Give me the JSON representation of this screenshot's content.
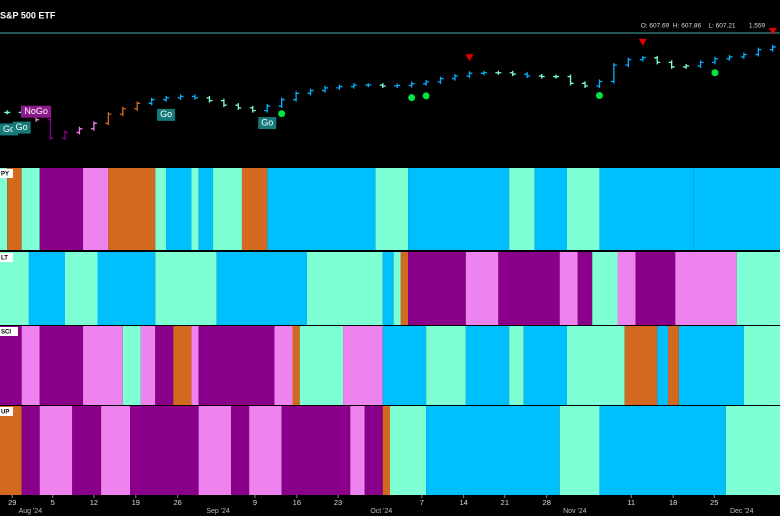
{
  "chart_data": {
    "type": "ohlc",
    "title": "S&P 500 ETF",
    "legend": [
      "O: 607.69",
      "H: 607.86",
      "L: 607.21",
      "1.559"
    ],
    "ylim": [
      540,
      612
    ],
    "xlim": [
      0,
      108
    ],
    "values": [
      570,
      571,
      566,
      556,
      559,
      561,
      564,
      569,
      572,
      575,
      577,
      578,
      578.8,
      578,
      576.5,
      574,
      572.5,
      571,
      573.5,
      577,
      580.5,
      582,
      583.5,
      584.2,
      585,
      585,
      584.5,
      584.8,
      585.8,
      586.8,
      588.6,
      590,
      591.5,
      591.8,
      591.8,
      591,
      590,
      589.7,
      589.7,
      586,
      584.5,
      587,
      596,
      599,
      600,
      597.5,
      595,
      595.5,
      597.5,
      599.5,
      600.5,
      601.8,
      604.5,
      606
    ],
    "colors": [
      "#7fffd4",
      "#7fffd4",
      "#ee82ee",
      "#8b008b",
      "#8b008b",
      "#ee82ee",
      "#ee82ee",
      "#d2691e",
      "#d2691e",
      "#d2691e",
      "#00b0ff",
      "#00b0ff",
      "#00b0ff",
      "#00b0ff",
      "#7fffd4",
      "#7fffd4",
      "#7fffd4",
      "#7fffd4",
      "#00b0ff",
      "#00b0ff",
      "#00b0ff",
      "#00b0ff",
      "#00b0ff",
      "#00b0ff",
      "#00b0ff",
      "#00b0ff",
      "#7fffd4",
      "#00b0ff",
      "#00b0ff",
      "#00b0ff",
      "#00b0ff",
      "#00b0ff",
      "#00b0ff",
      "#00b0ff",
      "#7fffd4",
      "#7fffd4",
      "#00b0ff",
      "#7fffd4",
      "#7fffd4",
      "#7fffd4",
      "#7fffd4",
      "#00b0ff",
      "#00b0ff",
      "#00b0ff",
      "#00b0ff",
      "#7fffd4",
      "#7fffd4",
      "#7fffd4",
      "#00b0ff",
      "#00b0ff",
      "#00b0ff",
      "#00b0ff",
      "#00b0ff",
      "#00b0ff"
    ],
    "annotations": [
      {
        "text": "Go",
        "bar": 0
      },
      {
        "text": "Go",
        "bar": 1
      },
      {
        "text": "NoGo",
        "bar": 2
      },
      {
        "text": "Go",
        "bar": 11
      },
      {
        "text": "Go",
        "bar": 18
      }
    ],
    "dots": [
      19,
      28,
      29,
      41,
      49
    ],
    "triangles": [
      32,
      44,
      53
    ],
    "panels": [
      {
        "label": "PY",
        "breaks": [
          0,
          1,
          3,
          5.5,
          11.5,
          15,
          21.5,
          23,
          26.5,
          27.5,
          29.5,
          33.5,
          37,
          52,
          56.5,
          70.5,
          74,
          78.5,
          83,
          96,
          108
        ],
        "colors": [
          "#7fffd4",
          "#d2691e",
          "#7fffd4",
          "#8b008b",
          "#ee82ee",
          "#d2691e",
          "#7fffd4",
          "#00bfff",
          "#7fffd4",
          "#00bfff",
          "#7fffd4",
          "#d2691e",
          "#00bfff",
          "#7fffd4",
          "#00bfff",
          "#7fffd4",
          "#00bfff",
          "#7fffd4",
          "#00bfff",
          "#00bfff"
        ]
      },
      {
        "label": "LT",
        "breaks": [
          0,
          4,
          9,
          13.5,
          21.5,
          30,
          42.5,
          53,
          54.5,
          55.5,
          56.5,
          64.5,
          69,
          77.5,
          80,
          82,
          85.5,
          88,
          93.5,
          102,
          108
        ],
        "colors": [
          "#7fffd4",
          "#00bfff",
          "#7fffd4",
          "#00bfff",
          "#7fffd4",
          "#00bfff",
          "#7fffd4",
          "#00bfff",
          "#7fffd4",
          "#d2691e",
          "#8b008b",
          "#ee82ee",
          "#8b008b",
          "#ee82ee",
          "#8b008b",
          "#7fffd4",
          "#ee82ee",
          "#8b008b",
          "#ee82ee",
          "#7fffd4"
        ]
      },
      {
        "label": "SCI",
        "breaks": [
          0,
          3,
          5.5,
          11.5,
          17,
          19.5,
          21.5,
          24,
          26.5,
          27.5,
          38,
          40.5,
          41.5,
          47.5,
          53,
          59,
          64.5,
          70.5,
          72.5,
          78.5,
          86.5,
          91,
          92.5,
          94,
          103,
          108
        ],
        "colors": [
          "#8b008b",
          "#ee82ee",
          "#8b008b",
          "#ee82ee",
          "#7fffd4",
          "#ee82ee",
          "#8b008b",
          "#d2691e",
          "#ee82ee",
          "#8b008b",
          "#ee82ee",
          "#d2691e",
          "#7fffd4",
          "#ee82ee",
          "#00bfff",
          "#7fffd4",
          "#00bfff",
          "#7fffd4",
          "#00bfff",
          "#7fffd4",
          "#d2691e",
          "#00bfff",
          "#d2691e",
          "#00bfff",
          "#7fffd4"
        ]
      },
      {
        "label": "UP",
        "breaks": [
          0,
          3,
          5.5,
          10,
          14,
          18,
          27.5,
          32,
          34.5,
          39,
          48.5,
          50.5,
          53,
          54,
          59,
          77.5,
          83,
          100.5,
          108
        ],
        "colors": [
          "#d2691e",
          "#8b008b",
          "#ee82ee",
          "#8b008b",
          "#ee82ee",
          "#8b008b",
          "#ee82ee",
          "#8b008b",
          "#ee82ee",
          "#8b008b",
          "#ee82ee",
          "#8b008b",
          "#d2691e",
          "#7fffd4",
          "#00bfff",
          "#7fffd4",
          "#00bfff",
          "#7fffd4"
        ]
      }
    ],
    "xticks": [
      {
        "value": 1.7,
        "label": "29"
      },
      {
        "value": 7.3,
        "label": "5"
      },
      {
        "value": 13,
        "label": "12"
      },
      {
        "value": 18.8,
        "label": "19"
      },
      {
        "value": 24.6,
        "label": "26"
      },
      {
        "value": 35.3,
        "label": "9"
      },
      {
        "value": 41.1,
        "label": "16"
      },
      {
        "value": 46.8,
        "label": "23"
      },
      {
        "value": 58.4,
        "label": "7"
      },
      {
        "value": 64.2,
        "label": "14"
      },
      {
        "value": 69.9,
        "label": "21"
      },
      {
        "value": 75.7,
        "label": "28"
      },
      {
        "value": 87.4,
        "label": "11"
      },
      {
        "value": 93.2,
        "label": "18"
      },
      {
        "value": 98.9,
        "label": "25"
      }
    ],
    "month_ticks": [
      {
        "value": 4.2,
        "label": "Aug '24"
      },
      {
        "value": 30.2,
        "label": "Sep '24"
      },
      {
        "value": 52.8,
        "label": "Oct '24"
      },
      {
        "value": 79.6,
        "label": "Nov '24"
      },
      {
        "value": 102.7,
        "label": "Dec '24"
      }
    ]
  }
}
